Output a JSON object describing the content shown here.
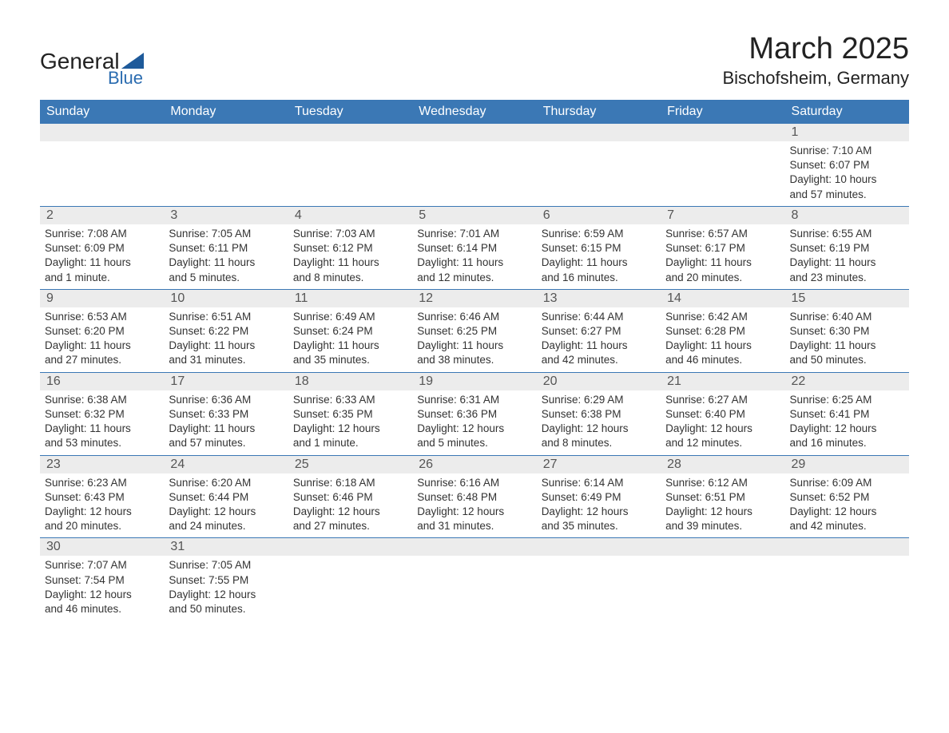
{
  "brand": {
    "name1": "General",
    "name2": "Blue",
    "icon_color": "#1e5a9a"
  },
  "title": {
    "month": "March 2025",
    "location": "Bischofsheim, Germany"
  },
  "headers": [
    "Sunday",
    "Monday",
    "Tuesday",
    "Wednesday",
    "Thursday",
    "Friday",
    "Saturday"
  ],
  "colors": {
    "header_bg": "#3b78b5",
    "header_text": "#ffffff",
    "daynum_bg": "#ececec",
    "row_border": "#3b78b5",
    "text": "#333333"
  },
  "weeks": [
    [
      {
        "day": "",
        "sunrise": "",
        "sunset": "",
        "daylight1": "",
        "daylight2": ""
      },
      {
        "day": "",
        "sunrise": "",
        "sunset": "",
        "daylight1": "",
        "daylight2": ""
      },
      {
        "day": "",
        "sunrise": "",
        "sunset": "",
        "daylight1": "",
        "daylight2": ""
      },
      {
        "day": "",
        "sunrise": "",
        "sunset": "",
        "daylight1": "",
        "daylight2": ""
      },
      {
        "day": "",
        "sunrise": "",
        "sunset": "",
        "daylight1": "",
        "daylight2": ""
      },
      {
        "day": "",
        "sunrise": "",
        "sunset": "",
        "daylight1": "",
        "daylight2": ""
      },
      {
        "day": "1",
        "sunrise": "Sunrise: 7:10 AM",
        "sunset": "Sunset: 6:07 PM",
        "daylight1": "Daylight: 10 hours",
        "daylight2": "and 57 minutes."
      }
    ],
    [
      {
        "day": "2",
        "sunrise": "Sunrise: 7:08 AM",
        "sunset": "Sunset: 6:09 PM",
        "daylight1": "Daylight: 11 hours",
        "daylight2": "and 1 minute."
      },
      {
        "day": "3",
        "sunrise": "Sunrise: 7:05 AM",
        "sunset": "Sunset: 6:11 PM",
        "daylight1": "Daylight: 11 hours",
        "daylight2": "and 5 minutes."
      },
      {
        "day": "4",
        "sunrise": "Sunrise: 7:03 AM",
        "sunset": "Sunset: 6:12 PM",
        "daylight1": "Daylight: 11 hours",
        "daylight2": "and 8 minutes."
      },
      {
        "day": "5",
        "sunrise": "Sunrise: 7:01 AM",
        "sunset": "Sunset: 6:14 PM",
        "daylight1": "Daylight: 11 hours",
        "daylight2": "and 12 minutes."
      },
      {
        "day": "6",
        "sunrise": "Sunrise: 6:59 AM",
        "sunset": "Sunset: 6:15 PM",
        "daylight1": "Daylight: 11 hours",
        "daylight2": "and 16 minutes."
      },
      {
        "day": "7",
        "sunrise": "Sunrise: 6:57 AM",
        "sunset": "Sunset: 6:17 PM",
        "daylight1": "Daylight: 11 hours",
        "daylight2": "and 20 minutes."
      },
      {
        "day": "8",
        "sunrise": "Sunrise: 6:55 AM",
        "sunset": "Sunset: 6:19 PM",
        "daylight1": "Daylight: 11 hours",
        "daylight2": "and 23 minutes."
      }
    ],
    [
      {
        "day": "9",
        "sunrise": "Sunrise: 6:53 AM",
        "sunset": "Sunset: 6:20 PM",
        "daylight1": "Daylight: 11 hours",
        "daylight2": "and 27 minutes."
      },
      {
        "day": "10",
        "sunrise": "Sunrise: 6:51 AM",
        "sunset": "Sunset: 6:22 PM",
        "daylight1": "Daylight: 11 hours",
        "daylight2": "and 31 minutes."
      },
      {
        "day": "11",
        "sunrise": "Sunrise: 6:49 AM",
        "sunset": "Sunset: 6:24 PM",
        "daylight1": "Daylight: 11 hours",
        "daylight2": "and 35 minutes."
      },
      {
        "day": "12",
        "sunrise": "Sunrise: 6:46 AM",
        "sunset": "Sunset: 6:25 PM",
        "daylight1": "Daylight: 11 hours",
        "daylight2": "and 38 minutes."
      },
      {
        "day": "13",
        "sunrise": "Sunrise: 6:44 AM",
        "sunset": "Sunset: 6:27 PM",
        "daylight1": "Daylight: 11 hours",
        "daylight2": "and 42 minutes."
      },
      {
        "day": "14",
        "sunrise": "Sunrise: 6:42 AM",
        "sunset": "Sunset: 6:28 PM",
        "daylight1": "Daylight: 11 hours",
        "daylight2": "and 46 minutes."
      },
      {
        "day": "15",
        "sunrise": "Sunrise: 6:40 AM",
        "sunset": "Sunset: 6:30 PM",
        "daylight1": "Daylight: 11 hours",
        "daylight2": "and 50 minutes."
      }
    ],
    [
      {
        "day": "16",
        "sunrise": "Sunrise: 6:38 AM",
        "sunset": "Sunset: 6:32 PM",
        "daylight1": "Daylight: 11 hours",
        "daylight2": "and 53 minutes."
      },
      {
        "day": "17",
        "sunrise": "Sunrise: 6:36 AM",
        "sunset": "Sunset: 6:33 PM",
        "daylight1": "Daylight: 11 hours",
        "daylight2": "and 57 minutes."
      },
      {
        "day": "18",
        "sunrise": "Sunrise: 6:33 AM",
        "sunset": "Sunset: 6:35 PM",
        "daylight1": "Daylight: 12 hours",
        "daylight2": "and 1 minute."
      },
      {
        "day": "19",
        "sunrise": "Sunrise: 6:31 AM",
        "sunset": "Sunset: 6:36 PM",
        "daylight1": "Daylight: 12 hours",
        "daylight2": "and 5 minutes."
      },
      {
        "day": "20",
        "sunrise": "Sunrise: 6:29 AM",
        "sunset": "Sunset: 6:38 PM",
        "daylight1": "Daylight: 12 hours",
        "daylight2": "and 8 minutes."
      },
      {
        "day": "21",
        "sunrise": "Sunrise: 6:27 AM",
        "sunset": "Sunset: 6:40 PM",
        "daylight1": "Daylight: 12 hours",
        "daylight2": "and 12 minutes."
      },
      {
        "day": "22",
        "sunrise": "Sunrise: 6:25 AM",
        "sunset": "Sunset: 6:41 PM",
        "daylight1": "Daylight: 12 hours",
        "daylight2": "and 16 minutes."
      }
    ],
    [
      {
        "day": "23",
        "sunrise": "Sunrise: 6:23 AM",
        "sunset": "Sunset: 6:43 PM",
        "daylight1": "Daylight: 12 hours",
        "daylight2": "and 20 minutes."
      },
      {
        "day": "24",
        "sunrise": "Sunrise: 6:20 AM",
        "sunset": "Sunset: 6:44 PM",
        "daylight1": "Daylight: 12 hours",
        "daylight2": "and 24 minutes."
      },
      {
        "day": "25",
        "sunrise": "Sunrise: 6:18 AM",
        "sunset": "Sunset: 6:46 PM",
        "daylight1": "Daylight: 12 hours",
        "daylight2": "and 27 minutes."
      },
      {
        "day": "26",
        "sunrise": "Sunrise: 6:16 AM",
        "sunset": "Sunset: 6:48 PM",
        "daylight1": "Daylight: 12 hours",
        "daylight2": "and 31 minutes."
      },
      {
        "day": "27",
        "sunrise": "Sunrise: 6:14 AM",
        "sunset": "Sunset: 6:49 PM",
        "daylight1": "Daylight: 12 hours",
        "daylight2": "and 35 minutes."
      },
      {
        "day": "28",
        "sunrise": "Sunrise: 6:12 AM",
        "sunset": "Sunset: 6:51 PM",
        "daylight1": "Daylight: 12 hours",
        "daylight2": "and 39 minutes."
      },
      {
        "day": "29",
        "sunrise": "Sunrise: 6:09 AM",
        "sunset": "Sunset: 6:52 PM",
        "daylight1": "Daylight: 12 hours",
        "daylight2": "and 42 minutes."
      }
    ],
    [
      {
        "day": "30",
        "sunrise": "Sunrise: 7:07 AM",
        "sunset": "Sunset: 7:54 PM",
        "daylight1": "Daylight: 12 hours",
        "daylight2": "and 46 minutes."
      },
      {
        "day": "31",
        "sunrise": "Sunrise: 7:05 AM",
        "sunset": "Sunset: 7:55 PM",
        "daylight1": "Daylight: 12 hours",
        "daylight2": "and 50 minutes."
      },
      {
        "day": "",
        "sunrise": "",
        "sunset": "",
        "daylight1": "",
        "daylight2": ""
      },
      {
        "day": "",
        "sunrise": "",
        "sunset": "",
        "daylight1": "",
        "daylight2": ""
      },
      {
        "day": "",
        "sunrise": "",
        "sunset": "",
        "daylight1": "",
        "daylight2": ""
      },
      {
        "day": "",
        "sunrise": "",
        "sunset": "",
        "daylight1": "",
        "daylight2": ""
      },
      {
        "day": "",
        "sunrise": "",
        "sunset": "",
        "daylight1": "",
        "daylight2": ""
      }
    ]
  ]
}
